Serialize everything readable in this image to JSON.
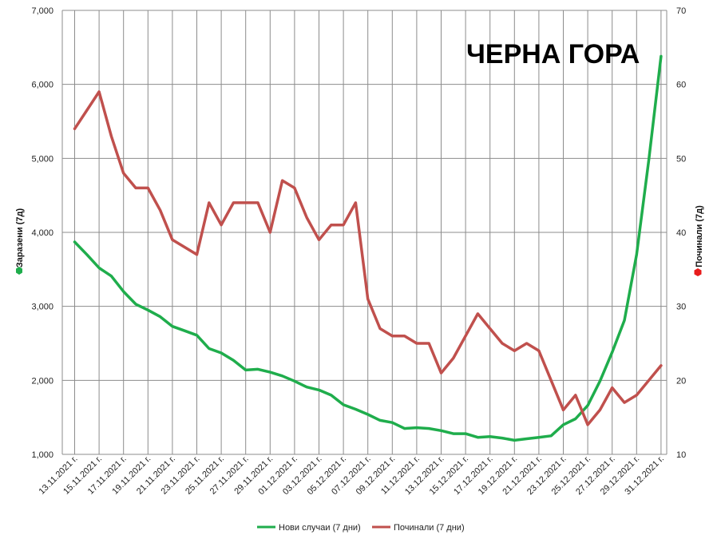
{
  "chart_data": {
    "type": "line",
    "title": "ЧЕРНА ГОРА",
    "ylabel_left": "Заразени (7д)",
    "ylabel_right": "Починали (7д)",
    "y_left_lim": [
      1000,
      7000
    ],
    "y_left_ticks": [
      "1,000",
      "2,000",
      "3,000",
      "4,000",
      "5,000",
      "6,000",
      "7,000"
    ],
    "y_right_lim": [
      10,
      70
    ],
    "y_right_ticks": [
      "10",
      "20",
      "30",
      "40",
      "50",
      "60",
      "70"
    ],
    "grid": true,
    "legend_position": "bottom",
    "x_tick_labels": [
      "13.11.2021 г.",
      "15.11.2021 г.",
      "17.11.2021 г.",
      "19.11.2021 г.",
      "21.11.2021 г.",
      "23.11.2021 г.",
      "25.11.2021 г.",
      "27.11.2021 г.",
      "29.11.2021 г.",
      "01.12.2021 г.",
      "03.12.2021 г.",
      "05.12.2021 г.",
      "07.12.2021 г.",
      "09.12.2021 г.",
      "11.12.2021 г.",
      "13.12.2021 г.",
      "15.12.2021 г.",
      "17.12.2021 г.",
      "19.12.2021 г.",
      "21.12.2021 г.",
      "23.12.2021 г.",
      "25.12.2021 г.",
      "27.12.2021 г.",
      "29.12.2021 г.",
      "31.12.2021 г."
    ],
    "x": [
      "13.11.2021 г.",
      "14.11.2021 г.",
      "15.11.2021 г.",
      "16.11.2021 г.",
      "17.11.2021 г.",
      "18.11.2021 г.",
      "19.11.2021 г.",
      "20.11.2021 г.",
      "21.11.2021 г.",
      "22.11.2021 г.",
      "23.11.2021 г.",
      "24.11.2021 г.",
      "25.11.2021 г.",
      "26.11.2021 г.",
      "27.11.2021 г.",
      "28.11.2021 г.",
      "29.11.2021 г.",
      "30.11.2021 г.",
      "01.12.2021 г.",
      "02.12.2021 г.",
      "03.12.2021 г.",
      "04.12.2021 г.",
      "05.12.2021 г.",
      "06.12.2021 г.",
      "07.12.2021 г.",
      "08.12.2021 г.",
      "09.12.2021 г.",
      "10.12.2021 г.",
      "11.12.2021 г.",
      "12.12.2021 г.",
      "13.12.2021 г.",
      "14.12.2021 г.",
      "15.12.2021 г.",
      "16.12.2021 г.",
      "17.12.2021 г.",
      "18.12.2021 г.",
      "19.12.2021 г.",
      "20.12.2021 г.",
      "21.12.2021 г.",
      "22.12.2021 г.",
      "23.12.2021 г.",
      "24.12.2021 г.",
      "25.12.2021 г.",
      "26.12.2021 г.",
      "27.12.2021 г.",
      "28.12.2021 г.",
      "29.12.2021 г.",
      "30.12.2021 г.",
      "31.12.2021 г."
    ],
    "series": [
      {
        "name": "Нови случаи (7 дни)",
        "axis": "left",
        "color": "#1fad4c",
        "values": [
          3870,
          3700,
          3520,
          3410,
          3200,
          3030,
          2950,
          2860,
          2730,
          2670,
          2610,
          2430,
          2370,
          2270,
          2140,
          2150,
          2110,
          2060,
          1990,
          1910,
          1870,
          1800,
          1670,
          1610,
          1540,
          1460,
          1430,
          1350,
          1360,
          1350,
          1320,
          1280,
          1280,
          1230,
          1240,
          1220,
          1190,
          1210,
          1230,
          1250,
          1400,
          1480,
          1660,
          1990,
          2380,
          2810,
          3700,
          4980,
          6380
        ]
      },
      {
        "name": "Починали (7 дни)",
        "axis": "right",
        "color": "#c0504d",
        "values": [
          54,
          56.5,
          59,
          53,
          48,
          46,
          46,
          43,
          39,
          38,
          37,
          44,
          41,
          44,
          44,
          44,
          40,
          47,
          46,
          42,
          39,
          41,
          41,
          44,
          31,
          27,
          26,
          26,
          25,
          25,
          21,
          23,
          26,
          29,
          27,
          25,
          24,
          25,
          24,
          20,
          16,
          18,
          14,
          16,
          19,
          17,
          18,
          20,
          22
        ]
      }
    ]
  }
}
